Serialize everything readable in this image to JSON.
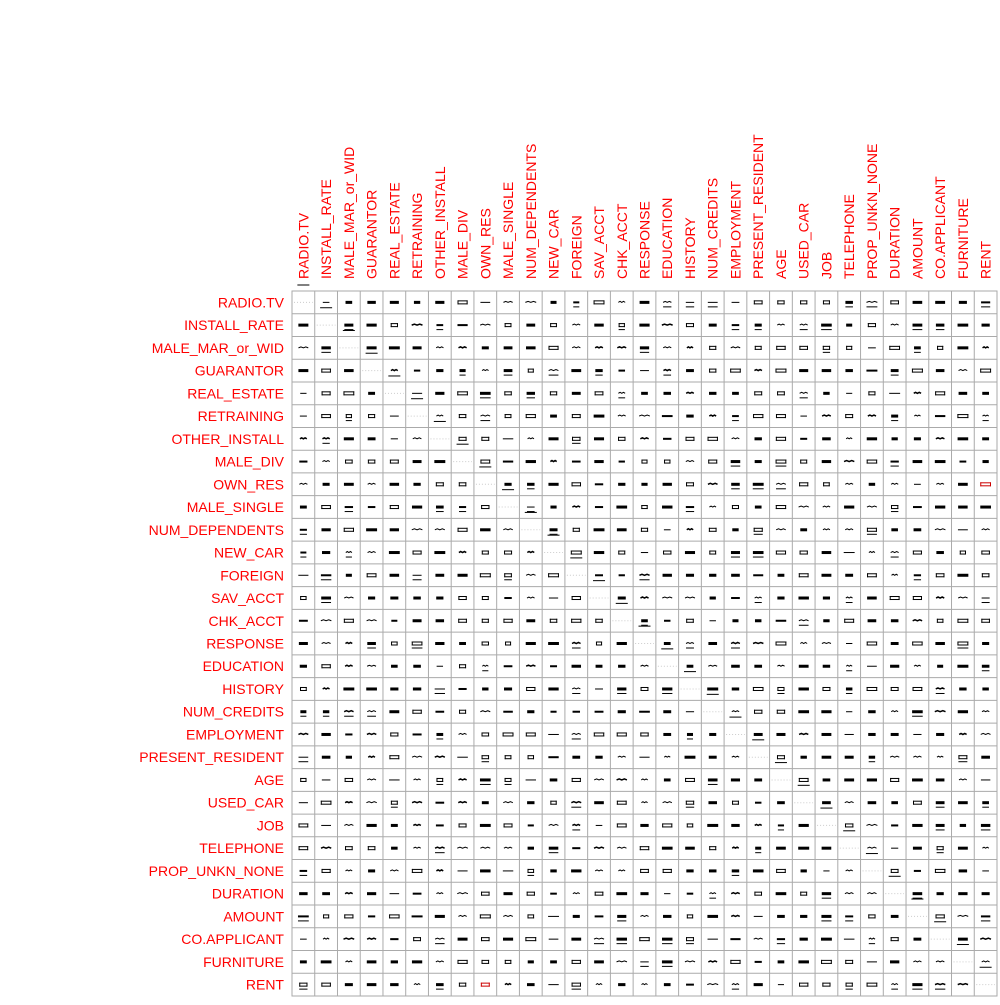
{
  "chart_data": {
    "type": "heatmap",
    "title": "",
    "xlabel": "",
    "ylabel": "",
    "variables": [
      "RADIO.TV",
      "INSTALL_RATE",
      "MALE_MAR_or_WID",
      "GUARANTOR",
      "REAL_ESTATE",
      "RETRAINING",
      "OTHER_INSTALL",
      "MALE_DIV",
      "OWN_RES",
      "MALE_SINGLE",
      "NUM_DEPENDENTS",
      "NEW_CAR",
      "FOREIGN",
      "SAV_ACCT",
      "CHK_ACCT",
      "RESPONSE",
      "EDUCATION",
      "HISTORY",
      "NUM_CREDITS",
      "EMPLOYMENT",
      "PRESENT_RESIDENT",
      "AGE",
      "USED_CAR",
      "JOB",
      "TELEPHONE",
      "PROP_UNKN_NONE",
      "DURATION",
      "AMOUNT",
      "CO.APPLICANT",
      "FURNITURE",
      "RENT"
    ],
    "grid": true,
    "label_color": "#ff0000",
    "glyph_color": "#000000",
    "highlight_color": "#cc0000",
    "grid_color": "#aaaaaa",
    "diagonal_line_color": "#cccccc",
    "highlighted_cells": [
      [
        8,
        30
      ],
      [
        30,
        8
      ]
    ]
  }
}
